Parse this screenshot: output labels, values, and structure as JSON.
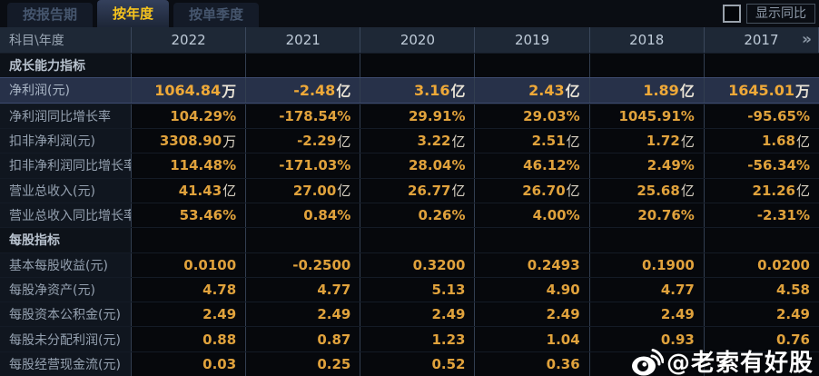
{
  "tabs": [
    {
      "id": "by-report-period",
      "label": "按报告期",
      "selected": false
    },
    {
      "id": "by-year",
      "label": "按年度",
      "selected": true
    },
    {
      "id": "by-quarter",
      "label": "按单季度",
      "selected": false
    }
  ],
  "controls": {
    "show_yoy_label": "显示同比",
    "checkbox_checked": false
  },
  "table": {
    "corner_label": "科目\\年度",
    "years": [
      "2022",
      "2021",
      "2020",
      "2019",
      "2018",
      "2017"
    ],
    "more_columns_icon": "»",
    "rows": [
      {
        "type": "section",
        "label": "成长能力指标",
        "values": [
          "",
          "",
          "",
          "",
          "",
          ""
        ]
      },
      {
        "type": "highlight",
        "label": "净利润(元)",
        "values": [
          "1064.84万",
          "-2.48亿",
          "3.16亿",
          "2.43亿",
          "1.89亿",
          "1645.01万"
        ]
      },
      {
        "type": "normal",
        "label": "净利润同比增长率",
        "values": [
          "104.29%",
          "-178.54%",
          "29.91%",
          "29.03%",
          "1045.91%",
          "-95.65%"
        ]
      },
      {
        "type": "normal",
        "label": "扣非净利润(元)",
        "values": [
          "3308.90万",
          "-2.29亿",
          "3.22亿",
          "2.51亿",
          "1.72亿",
          "1.68亿"
        ]
      },
      {
        "type": "normal",
        "label": "扣非净利润同比增长率",
        "values": [
          "114.48%",
          "-171.03%",
          "28.04%",
          "46.12%",
          "2.49%",
          "-56.34%"
        ]
      },
      {
        "type": "normal",
        "label": "营业总收入(元)",
        "values": [
          "41.43亿",
          "27.00亿",
          "26.77亿",
          "26.70亿",
          "25.68亿",
          "21.26亿"
        ]
      },
      {
        "type": "normal",
        "label": "营业总收入同比增长率",
        "values": [
          "53.46%",
          "0.84%",
          "0.26%",
          "4.00%",
          "20.76%",
          "-2.31%"
        ]
      },
      {
        "type": "section",
        "label": "每股指标",
        "values": [
          "",
          "",
          "",
          "",
          "",
          ""
        ]
      },
      {
        "type": "normal",
        "label": "基本每股收益(元)",
        "values": [
          "0.0100",
          "-0.2500",
          "0.3200",
          "0.2493",
          "0.1900",
          "0.0200"
        ]
      },
      {
        "type": "normal",
        "label": "每股净资产(元)",
        "values": [
          "4.78",
          "4.77",
          "5.13",
          "4.90",
          "4.77",
          "4.58"
        ]
      },
      {
        "type": "normal",
        "label": "每股资本公积金(元)",
        "values": [
          "2.49",
          "2.49",
          "2.49",
          "2.49",
          "2.49",
          "2.49"
        ]
      },
      {
        "type": "normal",
        "label": "每股未分配利润(元)",
        "values": [
          "0.88",
          "0.87",
          "1.23",
          "1.04",
          "0.93",
          "0.76"
        ]
      },
      {
        "type": "normal",
        "label": "每股经营现金流(元)",
        "values": [
          "0.03",
          "0.25",
          "0.52",
          "0.36",
          "",
          ""
        ]
      }
    ]
  },
  "watermark": {
    "text": "@老索有好股"
  },
  "colors": {
    "value_gold": "#e0a23c",
    "highlight_gold": "#efa938",
    "tab_selected_text": "#f5c31e",
    "highlight_row_bg": "#273149",
    "header_row_bg": "#1e2836"
  }
}
